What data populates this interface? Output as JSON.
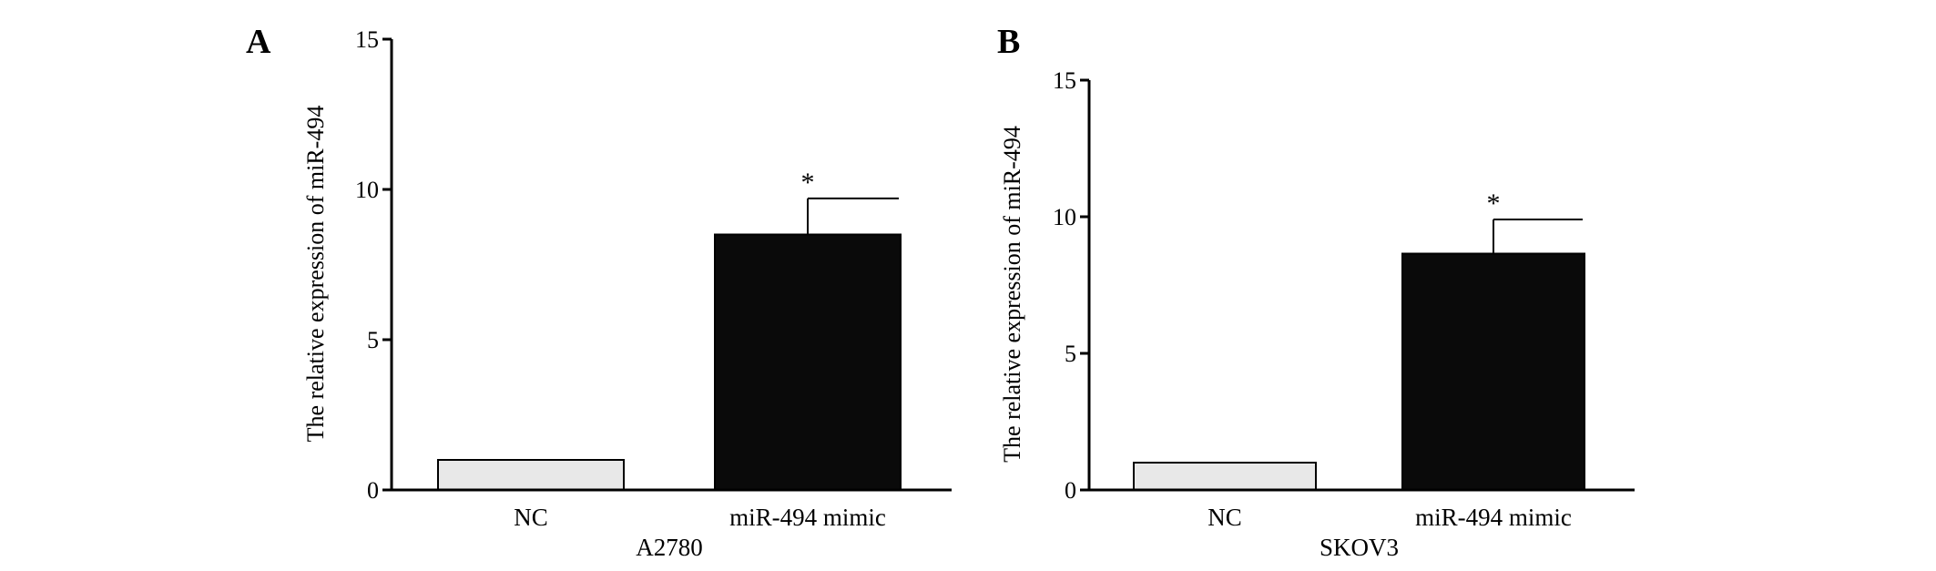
{
  "chart_data": [
    {
      "type": "bar",
      "panel": "A",
      "ylabel": "The relative expression of miR-494",
      "xlabel": "A2780",
      "categories": [
        "NC",
        "miR-494 mimic"
      ],
      "values": [
        1.0,
        8.5
      ],
      "error": [
        0,
        1.2
      ],
      "significance": [
        "",
        "*"
      ],
      "ylim": [
        0,
        15
      ],
      "yticks": [
        "0",
        "5",
        "10",
        "15"
      ],
      "colors": [
        "#e8e8e8",
        "#0a0a0a"
      ],
      "grid": false
    },
    {
      "type": "bar",
      "panel": "B",
      "ylabel": "The relative expression of miR-494",
      "xlabel": "SKOV3",
      "categories": [
        "NC",
        "miR-494 mimic"
      ],
      "values": [
        1.0,
        8.65
      ],
      "error": [
        0,
        1.25
      ],
      "significance": [
        "",
        "*"
      ],
      "ylim": [
        0,
        15
      ],
      "yticks": [
        "0",
        "5",
        "10",
        "15"
      ],
      "colors": [
        "#e8e8e8",
        "#0a0a0a"
      ],
      "grid": false
    }
  ]
}
